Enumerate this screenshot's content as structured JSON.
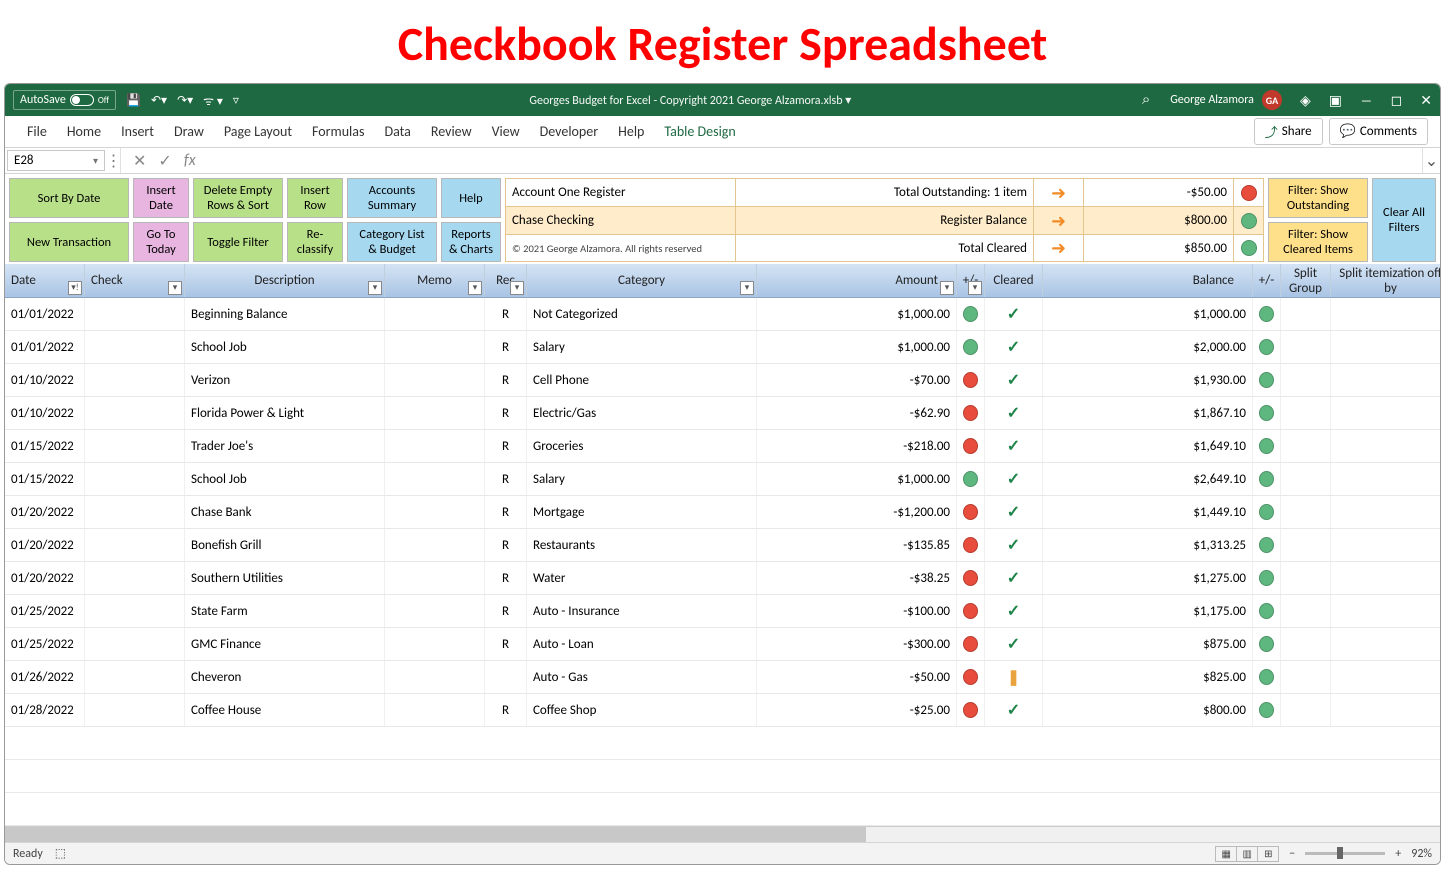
{
  "page_heading": "Checkbook Register Spreadsheet",
  "titleBar": {
    "autoSave": "AutoSave",
    "autoSaveStatus": "Off",
    "fileName": "Georges Budget for Excel - Copyright 2021 George Alzamora.xlsb ▾",
    "userName": "George Alzamora",
    "userInitials": "GA"
  },
  "ribbonTabs": [
    "File",
    "Home",
    "Insert",
    "Draw",
    "Page Layout",
    "Formulas",
    "Data",
    "Review",
    "View",
    "Developer",
    "Help",
    "Table Design"
  ],
  "activeRibbon": "Table Design",
  "share": "Share",
  "comments": "Comments",
  "nameBox": "E28",
  "actions": {
    "sortByDate": "Sort By Date",
    "insertDate": "Insert\nDate",
    "deleteEmpty": "Delete Empty\nRows & Sort",
    "insertRow": "Insert\nRow",
    "accounts": "Accounts\nSummary",
    "help": "Help",
    "newTx": "New Transaction",
    "goToday": "Go To\nToday",
    "toggleFilter": "Toggle Filter",
    "reclassify": "Re-\nclassify",
    "categoryList": "Category List\n& Budget",
    "reports": "Reports\n& Charts",
    "filterOutstanding": "Filter: Show\nOutstanding",
    "filterCleared": "Filter: Show\nCleared Items",
    "clearFilters": "Clear All\nFilters"
  },
  "summary": {
    "r1_label": "Account One Register",
    "r1_mid": "Total Outstanding: 1 item",
    "r1_val": "-$50.00",
    "r1_color": "red",
    "r2_label": "Chase Checking",
    "r2_mid": "Register Balance",
    "r2_val": "$800.00",
    "r2_color": "green",
    "r3_label": "© 2021 George Alzamora. All rights reserved",
    "r3_mid": "Total Cleared",
    "r3_val": "$850.00",
    "r3_color": "green"
  },
  "columns": [
    "Date",
    "Check",
    "Description",
    "Memo",
    "Rec",
    "Category",
    "Amount",
    "+/-",
    "Cleared",
    "Balance",
    "+/-",
    "Split Group",
    "Split itemization off by"
  ],
  "rows": [
    {
      "date": "01/01/2022",
      "check": "",
      "desc": "Beginning Balance",
      "memo": "",
      "rec": "R",
      "cat": "Not Categorized",
      "amount": "$1,000.00",
      "amtdot": "green",
      "cleared": "check",
      "balance": "$1,000.00",
      "baldot": "green"
    },
    {
      "date": "01/01/2022",
      "check": "",
      "desc": "School Job",
      "memo": "",
      "rec": "R",
      "cat": "Salary",
      "amount": "$1,000.00",
      "amtdot": "green",
      "cleared": "check",
      "balance": "$2,000.00",
      "baldot": "green"
    },
    {
      "date": "01/10/2022",
      "check": "",
      "desc": "Verizon",
      "memo": "",
      "rec": "R",
      "cat": "Cell Phone",
      "amount": "-$70.00",
      "amtdot": "red",
      "cleared": "check",
      "balance": "$1,930.00",
      "baldot": "green"
    },
    {
      "date": "01/10/2022",
      "check": "",
      "desc": "Florida Power & Light",
      "memo": "",
      "rec": "R",
      "cat": "Electric/Gas",
      "amount": "-$62.90",
      "amtdot": "red",
      "cleared": "check",
      "balance": "$1,867.10",
      "baldot": "green"
    },
    {
      "date": "01/15/2022",
      "check": "",
      "desc": "Trader Joe's",
      "memo": "",
      "rec": "R",
      "cat": "Groceries",
      "amount": "-$218.00",
      "amtdot": "red",
      "cleared": "check",
      "balance": "$1,649.10",
      "baldot": "green"
    },
    {
      "date": "01/15/2022",
      "check": "",
      "desc": "School Job",
      "memo": "",
      "rec": "R",
      "cat": "Salary",
      "amount": "$1,000.00",
      "amtdot": "green",
      "cleared": "check",
      "balance": "$2,649.10",
      "baldot": "green"
    },
    {
      "date": "01/20/2022",
      "check": "",
      "desc": "Chase Bank",
      "memo": "",
      "rec": "R",
      "cat": "Mortgage",
      "amount": "-$1,200.00",
      "amtdot": "red",
      "cleared": "check",
      "balance": "$1,449.10",
      "baldot": "green"
    },
    {
      "date": "01/20/2022",
      "check": "",
      "desc": "Bonefish Grill",
      "memo": "",
      "rec": "R",
      "cat": "Restaurants",
      "amount": "-$135.85",
      "amtdot": "red",
      "cleared": "check",
      "balance": "$1,313.25",
      "baldot": "green"
    },
    {
      "date": "01/20/2022",
      "check": "",
      "desc": "Southern Utilities",
      "memo": "",
      "rec": "R",
      "cat": "Water",
      "amount": "-$38.25",
      "amtdot": "red",
      "cleared": "check",
      "balance": "$1,275.00",
      "baldot": "green"
    },
    {
      "date": "01/25/2022",
      "check": "",
      "desc": "State Farm",
      "memo": "",
      "rec": "R",
      "cat": "Auto - Insurance",
      "amount": "-$100.00",
      "amtdot": "red",
      "cleared": "check",
      "balance": "$1,175.00",
      "baldot": "green"
    },
    {
      "date": "01/25/2022",
      "check": "",
      "desc": "GMC Finance",
      "memo": "",
      "rec": "R",
      "cat": "Auto - Loan",
      "amount": "-$300.00",
      "amtdot": "red",
      "cleared": "check",
      "balance": "$875.00",
      "baldot": "green"
    },
    {
      "date": "01/26/2022",
      "check": "",
      "desc": "Cheveron",
      "memo": "",
      "rec": "",
      "cat": "Auto - Gas",
      "amount": "-$50.00",
      "amtdot": "red",
      "cleared": "excl",
      "balance": "$825.00",
      "baldot": "green"
    },
    {
      "date": "01/28/2022",
      "check": "",
      "desc": "Coffee House",
      "memo": "",
      "rec": "R",
      "cat": "Coffee Shop",
      "amount": "-$25.00",
      "amtdot": "red",
      "cleared": "check",
      "balance": "$800.00",
      "baldot": "green"
    }
  ],
  "status": {
    "ready": "Ready",
    "zoom": "92%"
  },
  "colors": {
    "excel_green": "#1e6941",
    "action_green": "#b8e089",
    "action_pink": "#e8b5e0",
    "action_blue": "#a6d8f0",
    "action_yellow": "#ffe08a",
    "header_grad_top": "#d5e4f5",
    "header_grad_bottom": "#a9c4e4",
    "dot_green": "#5fb780",
    "dot_red": "#e74c3c"
  }
}
